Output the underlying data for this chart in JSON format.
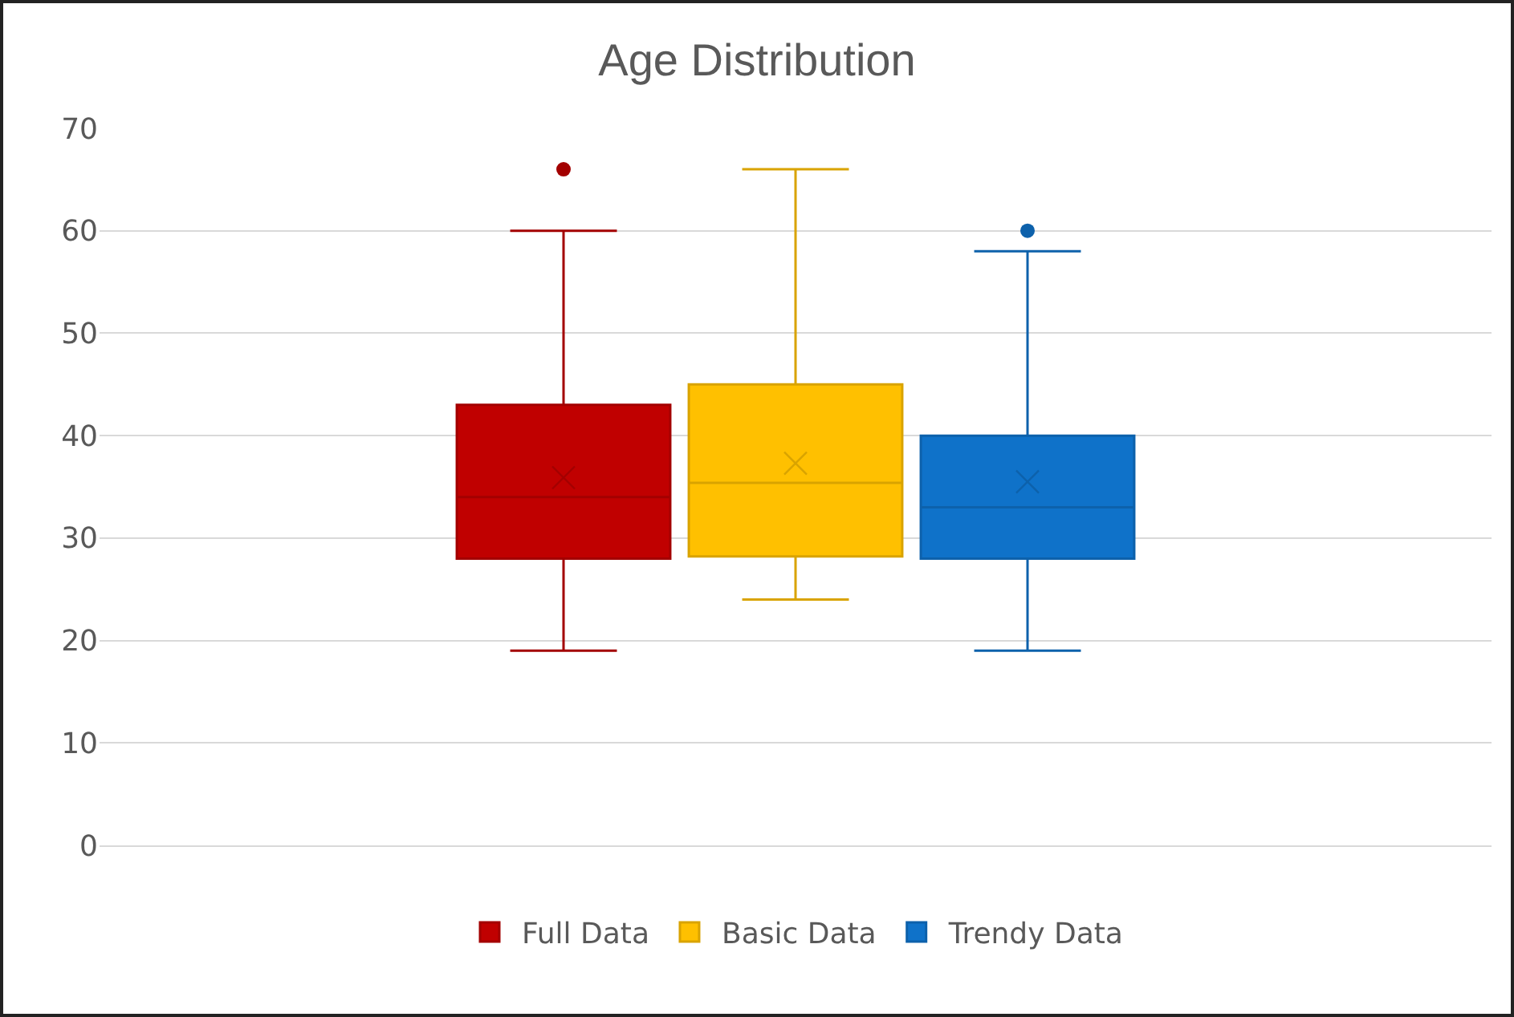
{
  "chart_data": {
    "type": "box",
    "title": "Age Distribution",
    "categories": [
      null
    ],
    "series": [
      {
        "name": "Full Data",
        "color": "#c00000",
        "boxes": [
          {
            "low": 19,
            "q1": 28,
            "median": 34,
            "q3": 43,
            "high": 60,
            "mean": 35.9,
            "outliers": [
              66
            ]
          }
        ]
      },
      {
        "name": "Basic Data",
        "color": "#ffc000",
        "boxes": [
          {
            "low": 24,
            "q1": 28.2,
            "median": 35.4,
            "q3": 45,
            "high": 66,
            "mean": 37.3
          }
        ]
      },
      {
        "name": "Trendy Data",
        "color": "#0f72c9",
        "boxes": [
          {
            "low": 19,
            "q1": 28,
            "median": 33,
            "q3": 40,
            "high": 58,
            "mean": 35.5,
            "outliers": [
              60
            ]
          }
        ]
      }
    ],
    "ylim": [
      0,
      70
    ],
    "yticks": [
      0,
      10,
      20,
      30,
      40,
      50,
      60,
      70
    ],
    "grid": "y",
    "legend": "bottom",
    "marker": "cross"
  }
}
